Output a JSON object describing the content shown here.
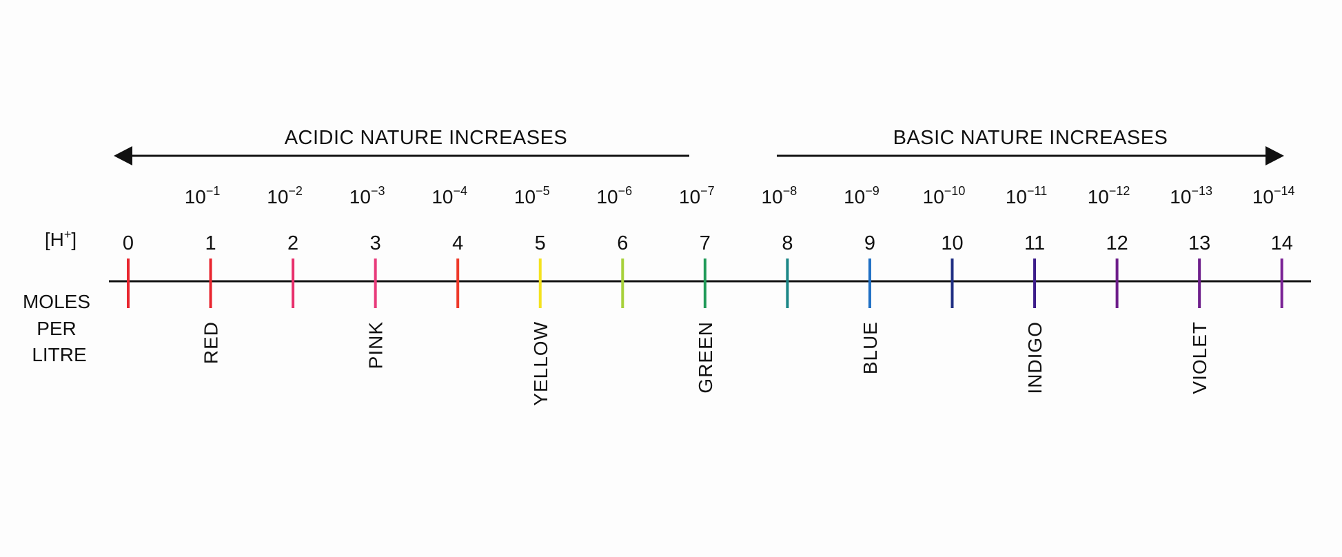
{
  "headings": {
    "acidic": "ACIDIC NATURE INCREASES",
    "basic": "BASIC NATURE INCREASES"
  },
  "side_labels": {
    "hplus_base": "[H",
    "hplus_sup": "+",
    "hplus_end": "]",
    "unit_line1": "MOLES",
    "unit_line2": "PER",
    "unit_line3": "LITRE"
  },
  "scale": {
    "ph_values": [
      "0",
      "1",
      "2",
      "3",
      "4",
      "5",
      "6",
      "7",
      "8",
      "9",
      "10",
      "11",
      "12",
      "13",
      "14"
    ],
    "concentrations": [
      null,
      {
        "base": "10",
        "exp": "−1"
      },
      {
        "base": "10",
        "exp": "−2"
      },
      {
        "base": "10",
        "exp": "−3"
      },
      {
        "base": "10",
        "exp": "−4"
      },
      {
        "base": "10",
        "exp": "−5"
      },
      {
        "base": "10",
        "exp": "−6"
      },
      {
        "base": "10",
        "exp": "−7"
      },
      {
        "base": "10",
        "exp": "−8"
      },
      {
        "base": "10",
        "exp": "−9"
      },
      {
        "base": "10",
        "exp": "−10"
      },
      {
        "base": "10",
        "exp": "−11"
      },
      {
        "base": "10",
        "exp": "−12"
      },
      {
        "base": "10",
        "exp": "−13"
      },
      {
        "base": "10",
        "exp": "−14"
      }
    ],
    "tick_colors": [
      "#e8262f",
      "#e8262f",
      "#e8306c",
      "#e83a7a",
      "#ee3a2a",
      "#f4e21f",
      "#a7d13a",
      "#1f9a58",
      "#1a8686",
      "#1f6fc4",
      "#1f2e82",
      "#3d1d8a",
      "#6d1d8a",
      "#6d1d8a",
      "#7a2295"
    ],
    "color_labels": [
      {
        "ph": 1,
        "text": "RED"
      },
      {
        "ph": 3,
        "text": "PINK"
      },
      {
        "ph": 5,
        "text": "YELLOW"
      },
      {
        "ph": 7,
        "text": "GREEN"
      },
      {
        "ph": 9,
        "text": "BLUE"
      },
      {
        "ph": 11,
        "text": "INDIGO"
      },
      {
        "ph": 13,
        "text": "VIOLET"
      }
    ]
  }
}
